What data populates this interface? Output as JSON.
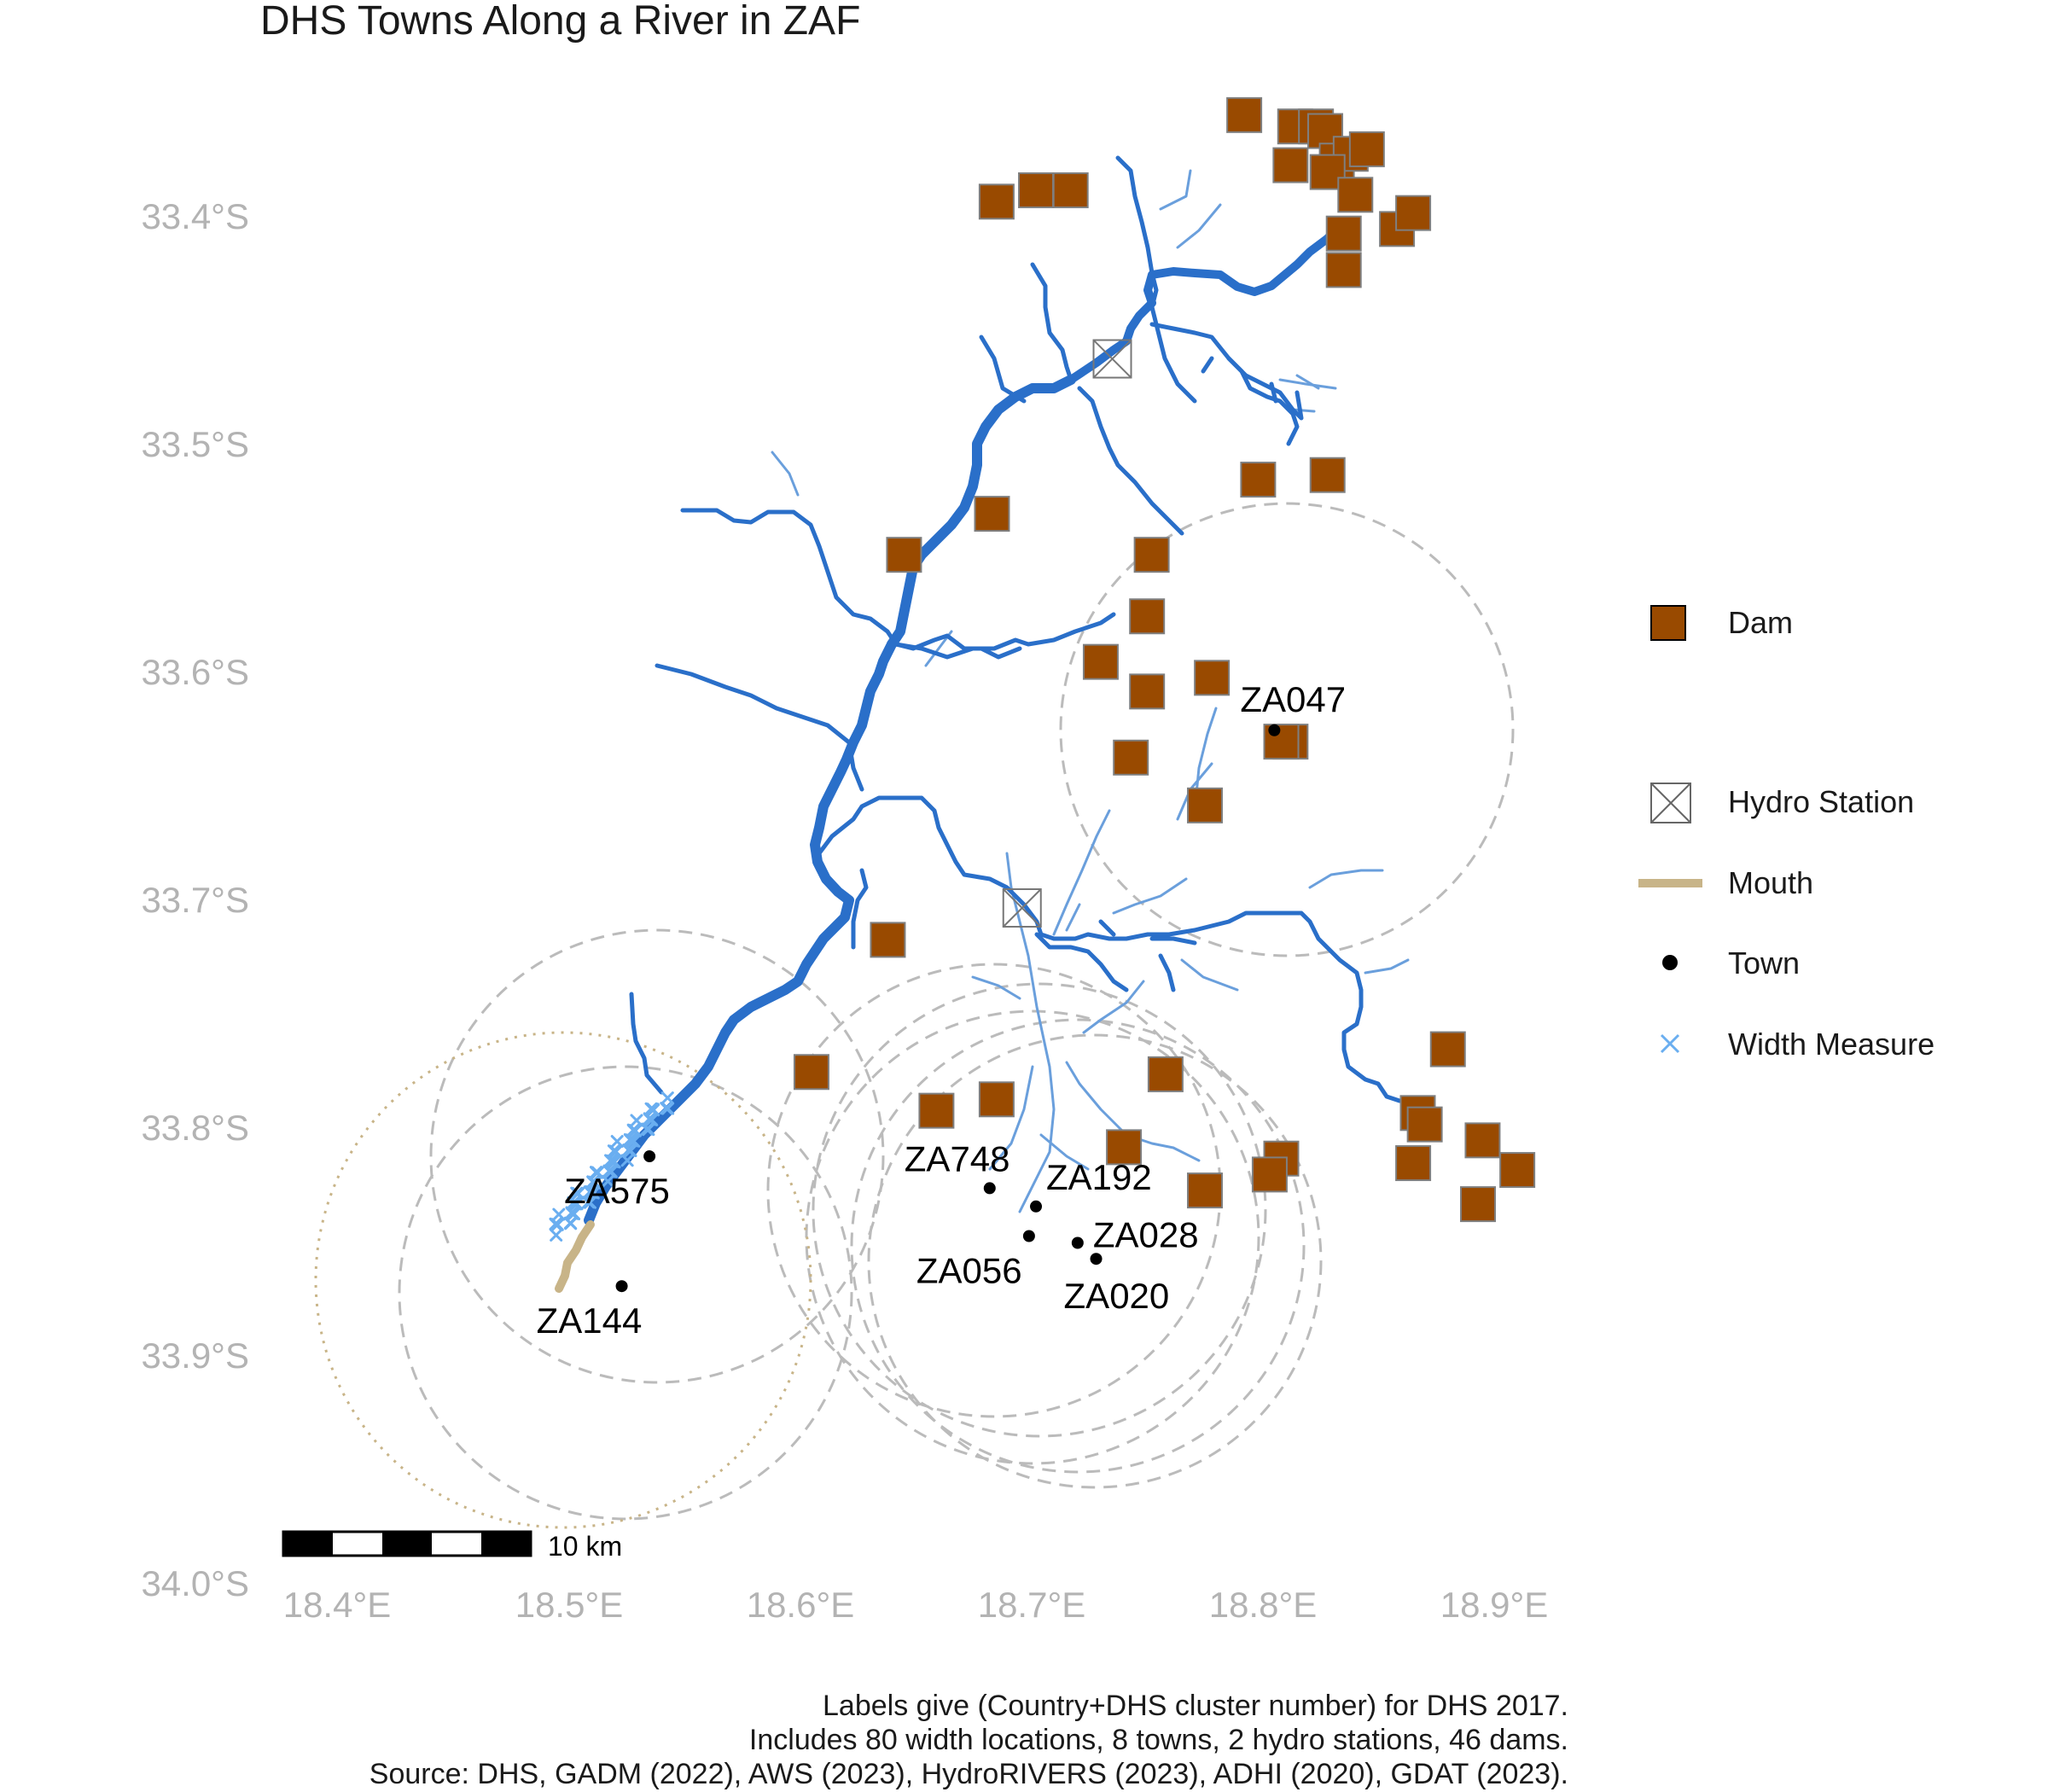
{
  "title": "DHS Towns Along a River in ZAF",
  "axes": {
    "lat_labels": [
      "33.4°S",
      "33.5°S",
      "33.6°S",
      "33.7°S",
      "33.8°S",
      "33.9°S",
      "34.0°S"
    ],
    "lon_labels": [
      "18.4°E",
      "18.5°E",
      "18.6°E",
      "18.7°E",
      "18.8°E",
      "18.9°E"
    ]
  },
  "towns": [
    {
      "id": "ZA047",
      "lon": 18.805,
      "lat": -33.625
    },
    {
      "id": "ZA575",
      "lon": 18.535,
      "lat": -33.812
    },
    {
      "id": "ZA748",
      "lon": 18.682,
      "lat": -33.826
    },
    {
      "id": "ZA192",
      "lon": 18.702,
      "lat": -33.834
    },
    {
      "id": "ZA056",
      "lon": 18.699,
      "lat": -33.847
    },
    {
      "id": "ZA028",
      "lon": 18.72,
      "lat": -33.85
    },
    {
      "id": "ZA020",
      "lon": 18.728,
      "lat": -33.857
    },
    {
      "id": "ZA144",
      "lon": 18.523,
      "lat": -33.869
    }
  ],
  "hydro_stations": [
    {
      "lon": 18.735,
      "lat": -33.462
    },
    {
      "lon": 18.696,
      "lat": -33.703
    }
  ],
  "dams": [
    [
      18.792,
      -33.355
    ],
    [
      18.814,
      -33.36
    ],
    [
      18.823,
      -33.36
    ],
    [
      18.827,
      -33.362
    ],
    [
      18.812,
      -33.377
    ],
    [
      18.832,
      -33.375
    ],
    [
      18.838,
      -33.372
    ],
    [
      18.828,
      -33.38
    ],
    [
      18.845,
      -33.37
    ],
    [
      18.84,
      -33.39
    ],
    [
      18.835,
      -33.407
    ],
    [
      18.835,
      -33.423
    ],
    [
      18.858,
      -33.405
    ],
    [
      18.865,
      -33.398
    ],
    [
      18.685,
      -33.393
    ],
    [
      18.702,
      -33.388
    ],
    [
      18.717,
      -33.388
    ],
    [
      18.798,
      -33.515
    ],
    [
      18.828,
      -33.513
    ],
    [
      18.683,
      -33.53
    ],
    [
      18.645,
      -33.548
    ],
    [
      18.752,
      -33.548
    ],
    [
      18.75,
      -33.575
    ],
    [
      18.73,
      -33.595
    ],
    [
      18.75,
      -33.608
    ],
    [
      18.778,
      -33.602
    ],
    [
      18.812,
      -33.63
    ],
    [
      18.808,
      -33.63
    ],
    [
      18.743,
      -33.637
    ],
    [
      18.775,
      -33.658
    ],
    [
      18.638,
      -33.717
    ],
    [
      18.605,
      -33.775
    ],
    [
      18.758,
      -33.776
    ],
    [
      18.88,
      -33.765
    ],
    [
      18.659,
      -33.792
    ],
    [
      18.685,
      -33.787
    ],
    [
      18.74,
      -33.808
    ],
    [
      18.775,
      -33.827
    ],
    [
      18.808,
      -33.813
    ],
    [
      18.803,
      -33.82
    ],
    [
      18.867,
      -33.793
    ],
    [
      18.87,
      -33.798
    ],
    [
      18.865,
      -33.815
    ],
    [
      18.895,
      -33.805
    ],
    [
      18.91,
      -33.818
    ],
    [
      18.893,
      -33.833
    ]
  ],
  "legend": {
    "dam": "Dam",
    "hydro_station": "Hydro Station",
    "mouth": "Mouth",
    "town": "Town",
    "width_measure": "Width Measure"
  },
  "scalebar": {
    "label": "10 km"
  },
  "caption": [
    "Labels give (Country+DHS cluster number) for DHS 2017.",
    "Includes 80 width locations, 8 towns, 2 hydro stations, 46 dams.",
    "Source: DHS, GADM (2022), AWS (2023), HydroRIVERS (2023), ADHI (2020), GDAT (2023)."
  ],
  "colors": {
    "river": "#2a6fc9",
    "tributary": "#6a9fdc",
    "dam_fill": "#994a00",
    "dam_stroke": "#7f7f7f",
    "mouth": "#c8b488",
    "width_measure": "#6aaef0",
    "buffer": "#bbbbbb",
    "mouth_buffer": "#c8b488",
    "town": "#000000"
  }
}
